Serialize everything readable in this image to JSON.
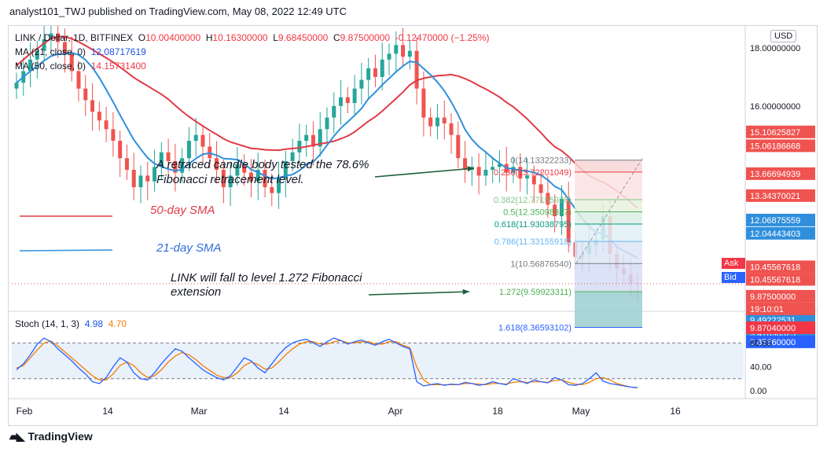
{
  "publisher": "analyst101_TWJ published on TradingView.com, May 08, 2022 12:49 UTC",
  "logo": "TradingView",
  "currency": "USD",
  "legend": {
    "symbol": "LINK / Dollar, 1D, BITFINEX",
    "open_label": "O",
    "open": "10.00400000",
    "high_label": "H",
    "high": "10.16300000",
    "low_label": "L",
    "low": "9.68450000",
    "close_label": "C",
    "close": "9.87500000",
    "change": "-0.12470000 (−1.25%)",
    "ma21_label": "MA (21, close, 0)",
    "ma21": "12.08717619",
    "ma50_label": "MA (50, close, 0)",
    "ma50": "14.15731400"
  },
  "annotations": {
    "retrace_line1": "A retraced candle body tested the 78.6%",
    "retrace_line2": "Fibonacci retracement level.",
    "sma50": "50-day SMA",
    "sma21": "21-day SMA",
    "fall_line1": "LINK will fall to level 1.272 Fibonacci",
    "fall_line2": "extension"
  },
  "ask": {
    "label": "Ask",
    "value": "9.87040000"
  },
  "bid": {
    "label": "Bid",
    "value": "9.85660000"
  },
  "countdown": "19:10:01",
  "stoch_legend": {
    "label": "Stoch (14, 1, 3)",
    "k": "4.98",
    "d": "4.70"
  },
  "colors": {
    "up": "#26a69a",
    "down": "#ef5350",
    "sma50": "#e03a45",
    "sma21": "#2f8fdc",
    "stoch_k": "#2962ff",
    "stoch_d": "#f57c00",
    "annot_arrow": "#1b5e3b"
  },
  "chart_data": {
    "type": "candlestick",
    "x_ticks": [
      "Feb",
      "14",
      "Mar",
      "14",
      "Apr",
      "18",
      "May",
      "16"
    ],
    "price_axis_ticks": [
      "18.00000000",
      "16.00000000"
    ],
    "price_axis_labels": [
      {
        "value": 15.10625827,
        "text": "15.10625827",
        "color": "#ef5350"
      },
      {
        "value": 15.06186668,
        "text": "15.06186668",
        "color": "#ef5350"
      },
      {
        "value": 13.66694939,
        "text": "13.66694939",
        "color": "#ef5350"
      },
      {
        "value": 13.34370021,
        "text": "13.34370021",
        "color": "#ef5350"
      },
      {
        "value": 12.06875559,
        "text": "12.06875559",
        "color": "#2f8fdc"
      },
      {
        "value": 12.04443403,
        "text": "12.04443403",
        "color": "#2f8fdc"
      },
      {
        "value": 10.45567618,
        "text": "10.45567618",
        "color": "#ef5350"
      },
      {
        "value": 10.45567618,
        "text": "10.45567618",
        "color": "#ef5350"
      },
      {
        "value": 9.875,
        "text": "9.87500000",
        "color": "#ef5350"
      },
      {
        "value": 9.49222531,
        "text": "9.49222531",
        "color": "#2f8fdc"
      },
      {
        "value": 9.47090325,
        "text": "9.47090325",
        "color": "#2f8fdc"
      }
    ],
    "closes": [
      16.8,
      17.2,
      17.6,
      17.9,
      18.3,
      18.5,
      18.2,
      17.8,
      17.2,
      16.6,
      16.2,
      15.8,
      15.5,
      15.2,
      14.8,
      14.2,
      13.8,
      13.2,
      13.6,
      13.4,
      13.9,
      14.4,
      14.1,
      13.7,
      14.2,
      14.8,
      15.0,
      14.6,
      14.2,
      13.8,
      13.2,
      13.6,
      14.0,
      13.7,
      13.4,
      13.8,
      13.2,
      13.0,
      13.5,
      14.1,
      14.4,
      14.8,
      15.0,
      14.6,
      15.2,
      15.6,
      16.0,
      16.3,
      16.1,
      16.6,
      16.9,
      17.3,
      17.0,
      17.6,
      17.8,
      18.1,
      17.7,
      17.9,
      16.6,
      15.6,
      15.3,
      15.6,
      15.4,
      15.0,
      14.2,
      13.8,
      13.9,
      13.6,
      13.8,
      13.9,
      14.0,
      13.7,
      13.9,
      13.5,
      13.6,
      13.3,
      13.0,
      12.6,
      12.2,
      12.8,
      11.3,
      10.8,
      10.9,
      11.2,
      11.4,
      12.2,
      10.9,
      10.4,
      10.2,
      9.9,
      9.875
    ],
    "stoch_k": [
      35,
      45,
      60,
      78,
      88,
      82,
      70,
      60,
      50,
      38,
      28,
      15,
      12,
      22,
      40,
      55,
      48,
      30,
      20,
      18,
      30,
      45,
      58,
      70,
      66,
      55,
      45,
      35,
      28,
      22,
      18,
      25,
      40,
      55,
      50,
      38,
      30,
      45,
      60,
      72,
      80,
      84,
      86,
      80,
      74,
      82,
      88,
      84,
      78,
      82,
      85,
      80,
      76,
      82,
      86,
      80,
      74,
      70,
      15,
      8,
      10,
      12,
      9,
      11,
      10,
      14,
      12,
      9,
      11,
      15,
      12,
      10,
      20,
      16,
      12,
      18,
      15,
      13,
      22,
      18,
      10,
      9,
      12,
      20,
      30,
      16,
      12,
      10,
      8,
      6,
      4.98
    ],
    "stoch_d": [
      38,
      42,
      55,
      68,
      80,
      83,
      75,
      65,
      55,
      45,
      35,
      25,
      18,
      18,
      28,
      42,
      48,
      42,
      30,
      22,
      25,
      35,
      48,
      58,
      64,
      60,
      52,
      42,
      34,
      26,
      22,
      22,
      30,
      42,
      48,
      44,
      36,
      38,
      48,
      60,
      70,
      78,
      82,
      82,
      78,
      78,
      82,
      84,
      80,
      80,
      82,
      82,
      78,
      78,
      82,
      82,
      76,
      72,
      40,
      18,
      10,
      10,
      10,
      10,
      10,
      12,
      12,
      11,
      10,
      12,
      12,
      11,
      14,
      15,
      14,
      15,
      15,
      14,
      17,
      18,
      14,
      11,
      10,
      14,
      20,
      22,
      18,
      12,
      9,
      6,
      4.7
    ],
    "stoch_ticks": [
      "80.00",
      "40.00",
      "0.00"
    ],
    "fibonacci": {
      "levels": [
        {
          "ratio": "0",
          "value": "14.13322233",
          "label": "0(14.13322233)"
        },
        {
          "ratio": "0.236",
          "value": "13.72201049",
          "label": "0.236(13.72201049)"
        },
        {
          "ratio": "0.382",
          "value": "12.77155978",
          "label": "0.382(12.77155978)"
        },
        {
          "ratio": "0.5",
          "value": "12.35098357",
          "label": "0.5(12.35098357)"
        },
        {
          "ratio": "0.618",
          "value": "11.93038795",
          "label": "0.618(11.93038795)"
        },
        {
          "ratio": "0.786",
          "value": "11.33155918",
          "label": "0.786(11.33155918)"
        },
        {
          "ratio": "1",
          "value": "10.56876540",
          "label": "1(10.56876540)"
        },
        {
          "ratio": "1.272",
          "value": "9.59923311",
          "label": "1.272(9.59923311)"
        },
        {
          "ratio": "1.618",
          "value": "8.36593102",
          "label": "1.618(8.36593102)"
        }
      ]
    }
  }
}
